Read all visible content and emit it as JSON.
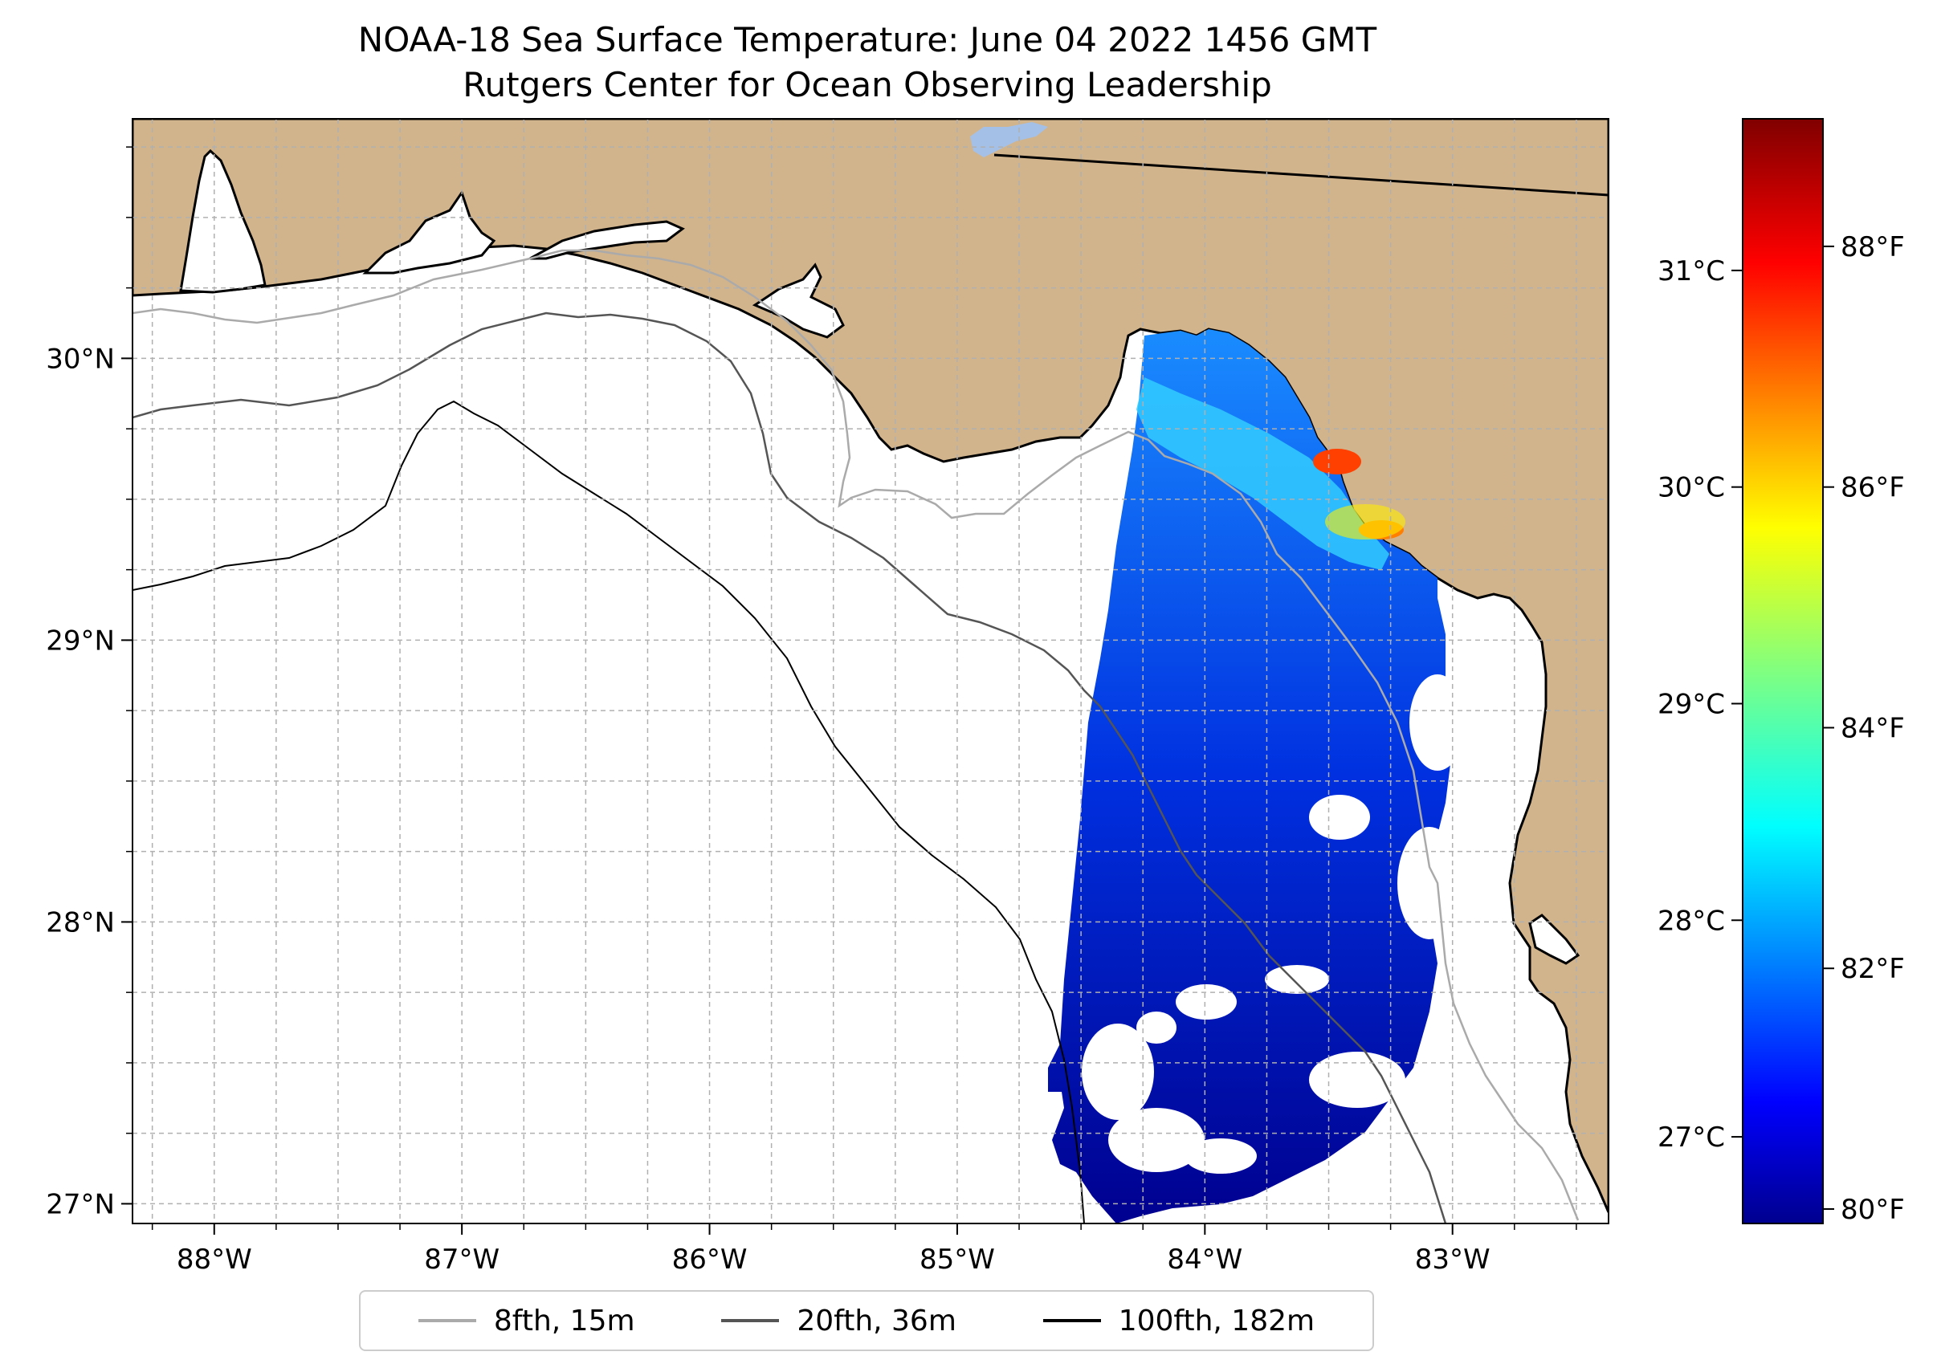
{
  "title": {
    "line1": "NOAA-18 Sea Surface Temperature: June 04 2022 1456 GMT",
    "line2": "Rutgers Center for Ocean Observing Leadership"
  },
  "map": {
    "lon_range": [
      -88.33,
      -82.37
    ],
    "lat_range": [
      26.93,
      30.85
    ],
    "land_color": "#d2b48c",
    "water_color": "#ffffff",
    "lon_ticks": [
      {
        "value": -88,
        "label": "88°W"
      },
      {
        "value": -87,
        "label": "87°W"
      },
      {
        "value": -86,
        "label": "86°W"
      },
      {
        "value": -85,
        "label": "85°W"
      },
      {
        "value": -84,
        "label": "84°W"
      },
      {
        "value": -83,
        "label": "83°W"
      }
    ],
    "lat_ticks": [
      {
        "value": 27,
        "label": "27°N"
      },
      {
        "value": 28,
        "label": "28°N"
      },
      {
        "value": 29,
        "label": "29°N"
      },
      {
        "value": 30,
        "label": "30°N"
      }
    ],
    "grid": "dashed"
  },
  "colorbar": {
    "colormap": "jet",
    "range_c": [
      26.6,
      31.7
    ],
    "celsius_ticks": [
      {
        "value": 27,
        "label": "27°C"
      },
      {
        "value": 28,
        "label": "28°C"
      },
      {
        "value": 29,
        "label": "29°C"
      },
      {
        "value": 30,
        "label": "30°C"
      },
      {
        "value": 31,
        "label": "31°C"
      }
    ],
    "fahrenheit_ticks": [
      {
        "value": 80,
        "label": "80°F"
      },
      {
        "value": 82,
        "label": "82°F"
      },
      {
        "value": 84,
        "label": "84°F"
      },
      {
        "value": 86,
        "label": "86°F"
      },
      {
        "value": 88,
        "label": "88°F"
      }
    ]
  },
  "legend": {
    "items": [
      {
        "label": "8fth, 15m",
        "color": "#aaaaaa"
      },
      {
        "label": "20fth, 36m",
        "color": "#555555"
      },
      {
        "label": "100fth, 182m",
        "color": "#000000"
      }
    ]
  }
}
